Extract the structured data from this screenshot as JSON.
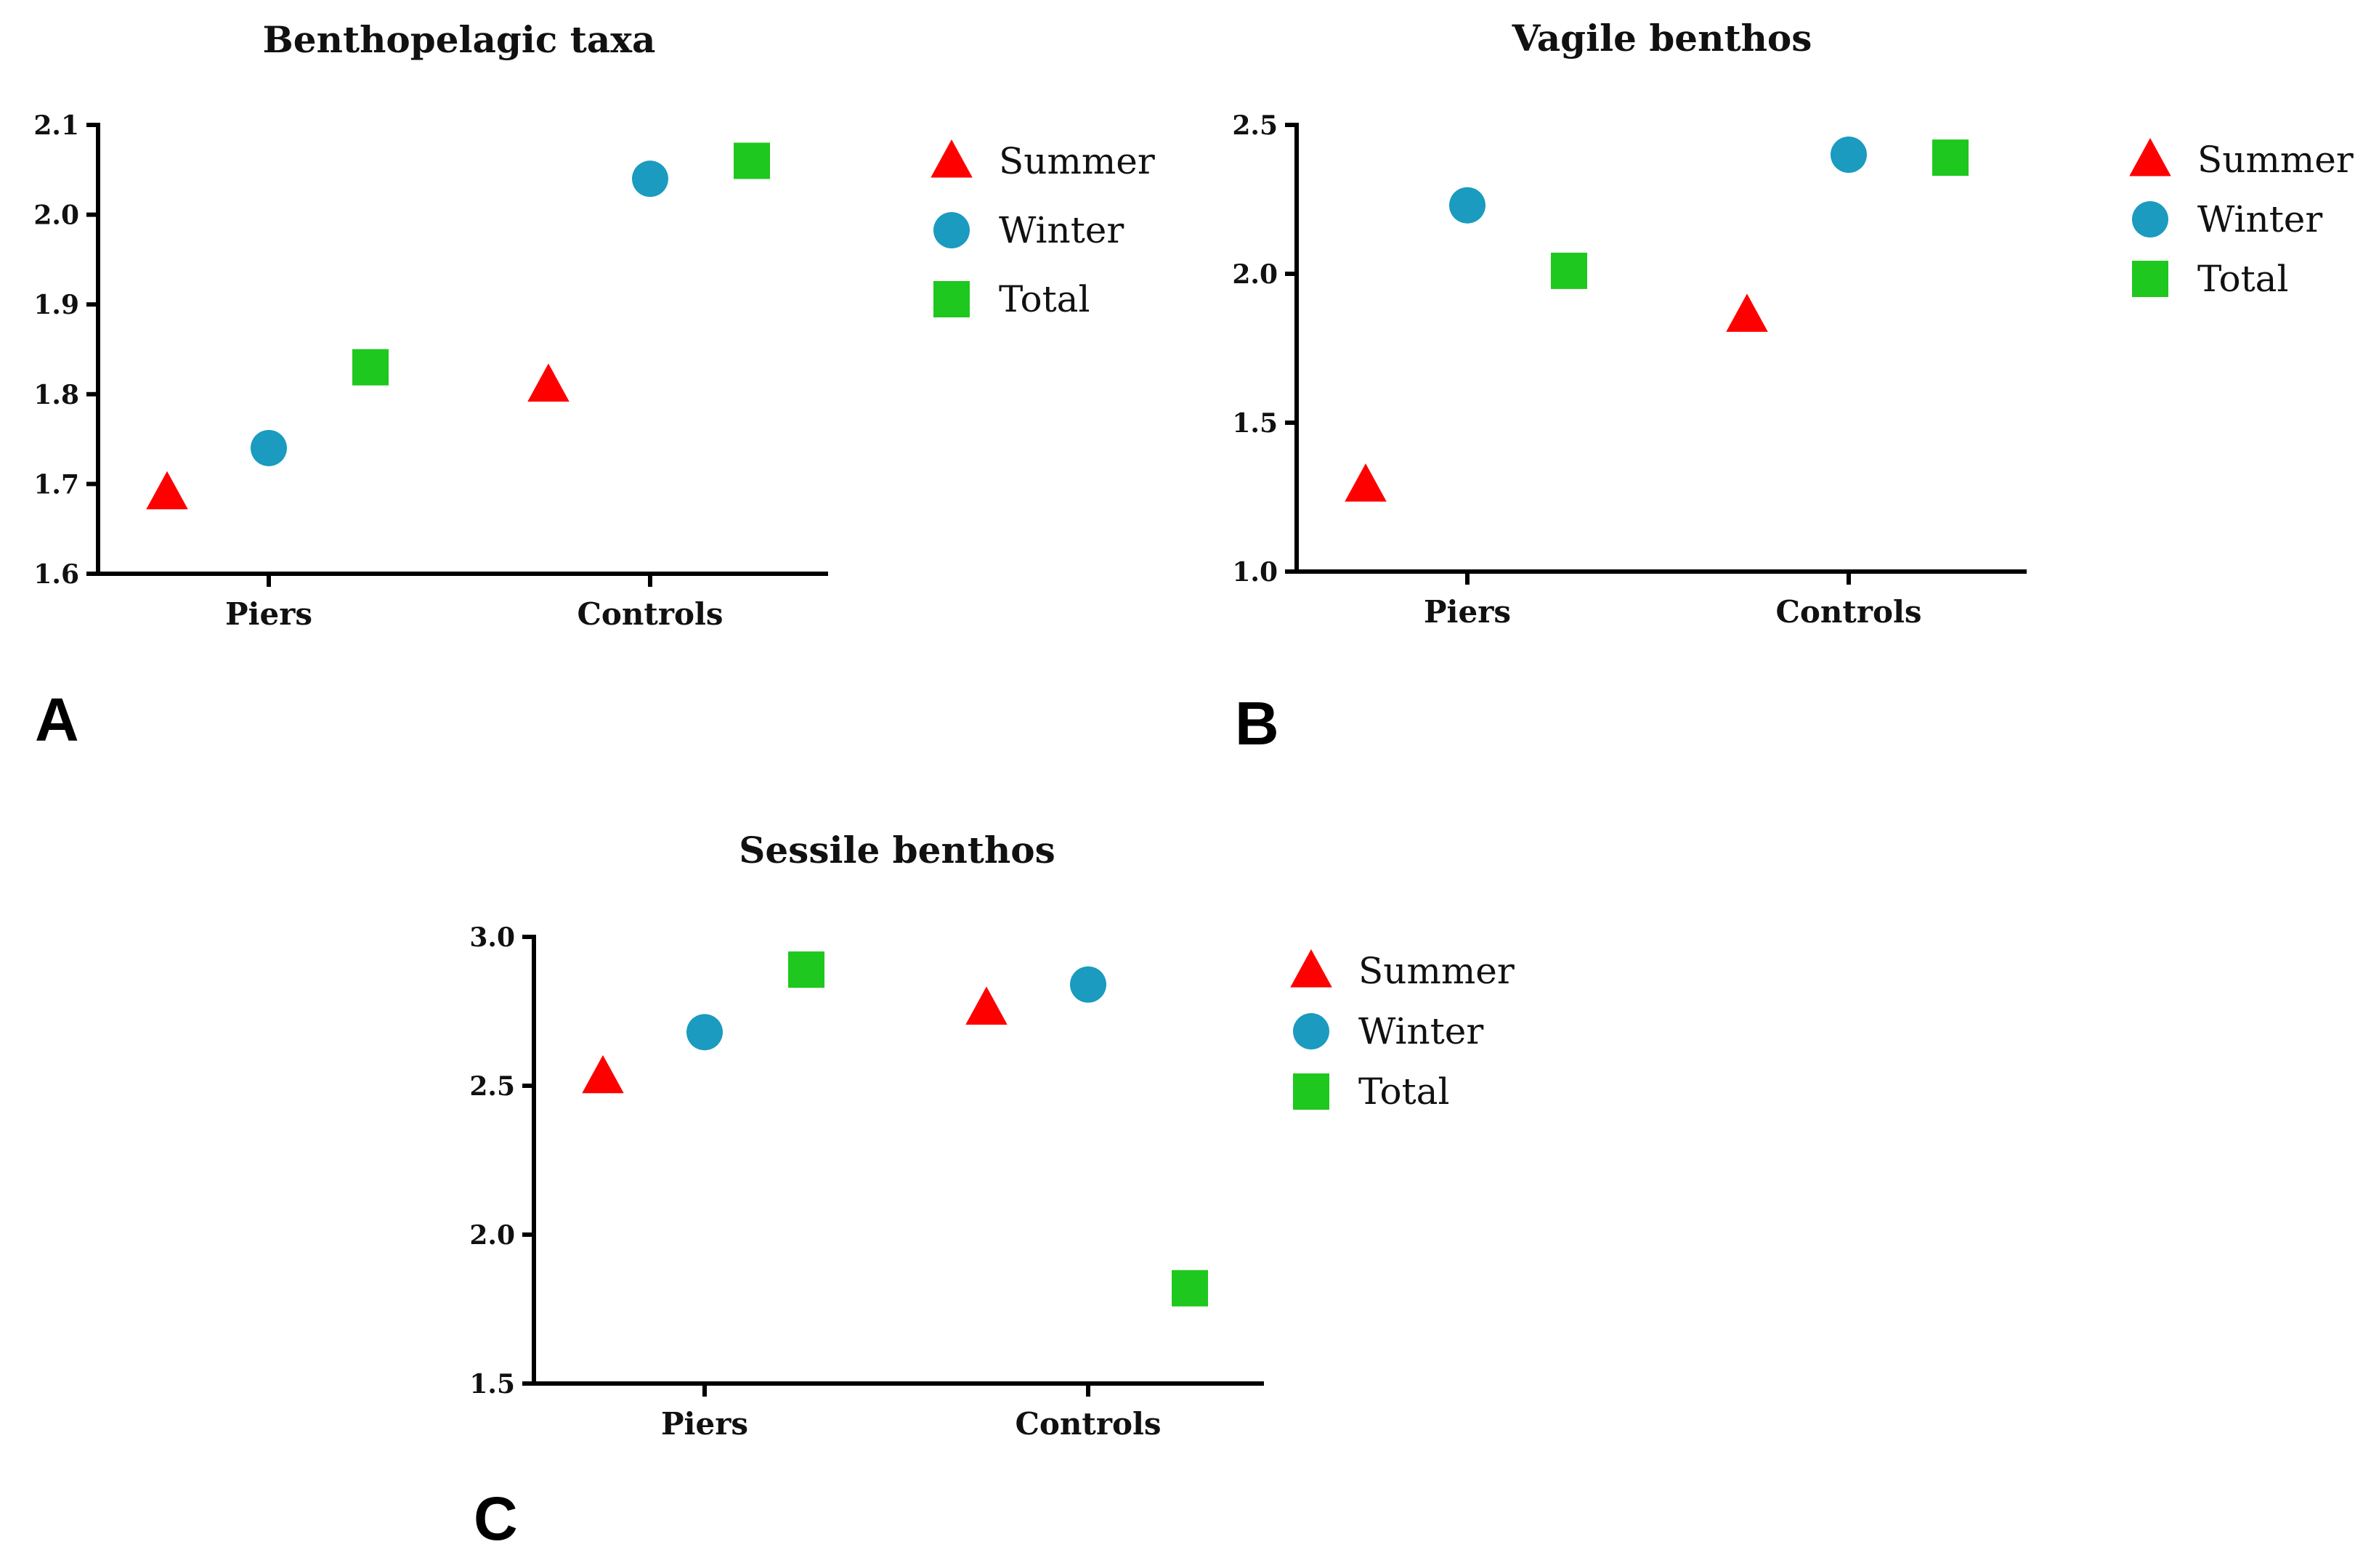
{
  "colors": {
    "Summer": "#ff0000",
    "Winter": "#1a9bbf",
    "Total": "#1ec81e"
  },
  "markers": {
    "Summer": "triangle",
    "Winter": "circle",
    "Total": "square"
  },
  "chart_data": [
    {
      "panel_letter": "A",
      "type": "scatter",
      "title": "Benthopelagic taxa",
      "categories": [
        "Piers",
        "Controls"
      ],
      "ylim": [
        1.6,
        2.1
      ],
      "yticks": [
        "1.6",
        "1.7",
        "1.8",
        "1.9",
        "2.0",
        "2.1"
      ],
      "legend": [
        "Summer",
        "Winter",
        "Total"
      ],
      "legend_position": "right",
      "grid": false,
      "series": [
        {
          "name": "Summer",
          "values": [
            1.69,
            1.81
          ]
        },
        {
          "name": "Winter",
          "values": [
            1.74,
            2.04
          ]
        },
        {
          "name": "Total",
          "values": [
            1.83,
            2.06
          ]
        }
      ]
    },
    {
      "panel_letter": "B",
      "type": "scatter",
      "title": "Vagile benthos",
      "categories": [
        "Piers",
        "Controls"
      ],
      "ylim": [
        1.0,
        2.5
      ],
      "yticks": [
        "1.0",
        "1.5",
        "2.0",
        "2.5"
      ],
      "legend": [
        "Summer",
        "Winter",
        "Total"
      ],
      "legend_position": "right",
      "grid": false,
      "series": [
        {
          "name": "Summer",
          "values": [
            1.29,
            1.86
          ]
        },
        {
          "name": "Winter",
          "values": [
            2.23,
            2.4
          ]
        },
        {
          "name": "Total",
          "values": [
            2.01,
            2.39
          ]
        }
      ]
    },
    {
      "panel_letter": "C",
      "type": "scatter",
      "title": "Sessile benthos",
      "categories": [
        "Piers",
        "Controls"
      ],
      "ylim": [
        1.5,
        3.0
      ],
      "yticks": [
        "1.5",
        "2.0",
        "2.5",
        "3.0"
      ],
      "legend": [
        "Summer",
        "Winter",
        "Total"
      ],
      "legend_position": "right",
      "grid": false,
      "series": [
        {
          "name": "Summer",
          "values": [
            2.53,
            2.76
          ]
        },
        {
          "name": "Winter",
          "values": [
            2.68,
            2.84
          ]
        },
        {
          "name": "Total",
          "values": [
            2.89,
            1.82
          ]
        }
      ]
    }
  ]
}
